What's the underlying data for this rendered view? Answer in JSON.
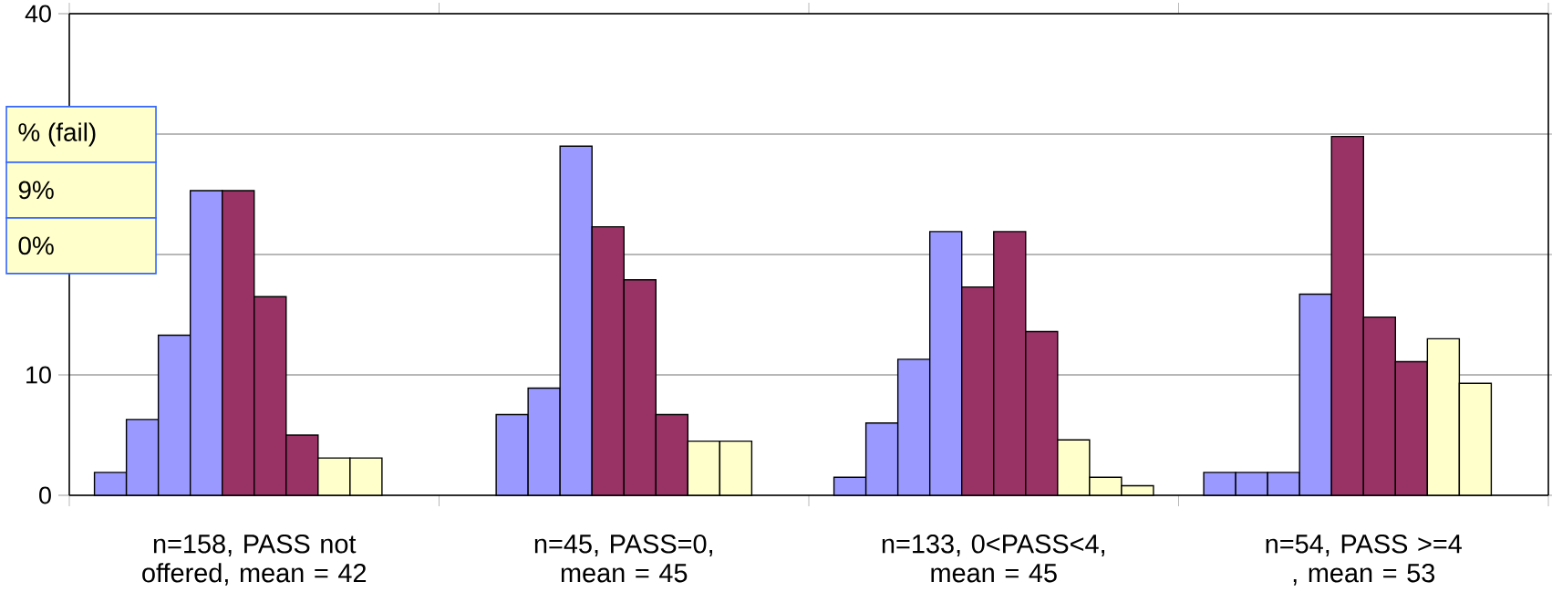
{
  "chart_data": {
    "type": "bar",
    "categories": [
      "n=158, PASS not offered, mean = 42",
      "n=45, PASS=0, mean = 45",
      "n=133, 0<PASS<4, mean = 45",
      "n=54, PASS >=4 , mean = 53"
    ],
    "series": [
      {
        "color": "#9999ff",
        "values": [
          1.9,
          null,
          1.5,
          1.9
        ]
      },
      {
        "color": "#9999ff",
        "values": [
          6.3,
          6.7,
          6.0,
          1.9
        ]
      },
      {
        "color": "#9999ff",
        "values": [
          13.3,
          8.9,
          11.3,
          1.9
        ]
      },
      {
        "color": "#9999ff",
        "values": [
          25.3,
          29.0,
          21.9,
          16.7
        ]
      },
      {
        "color": "#993366",
        "values": [
          25.3,
          22.3,
          17.3,
          29.8
        ]
      },
      {
        "color": "#993366",
        "values": [
          16.5,
          17.9,
          21.9,
          14.8
        ]
      },
      {
        "color": "#993366",
        "values": [
          5.0,
          6.7,
          13.6,
          11.1
        ]
      },
      {
        "color": "#ffffcc",
        "values": [
          3.1,
          4.5,
          4.6,
          13.0
        ]
      },
      {
        "color": "#ffffcc",
        "values": [
          3.1,
          4.5,
          1.5,
          9.3
        ]
      },
      {
        "color": "#ffffcc",
        "values": [
          null,
          null,
          0.8,
          null
        ]
      }
    ],
    "ylim": [
      0,
      40
    ],
    "yticks": [
      0,
      10,
      {
        "value": 20,
        "label": null
      },
      {
        "value": 30,
        "label": null
      },
      40
    ],
    "grid": "y",
    "annotations": [
      "% (fail)",
      "9%",
      "0%"
    ]
  }
}
